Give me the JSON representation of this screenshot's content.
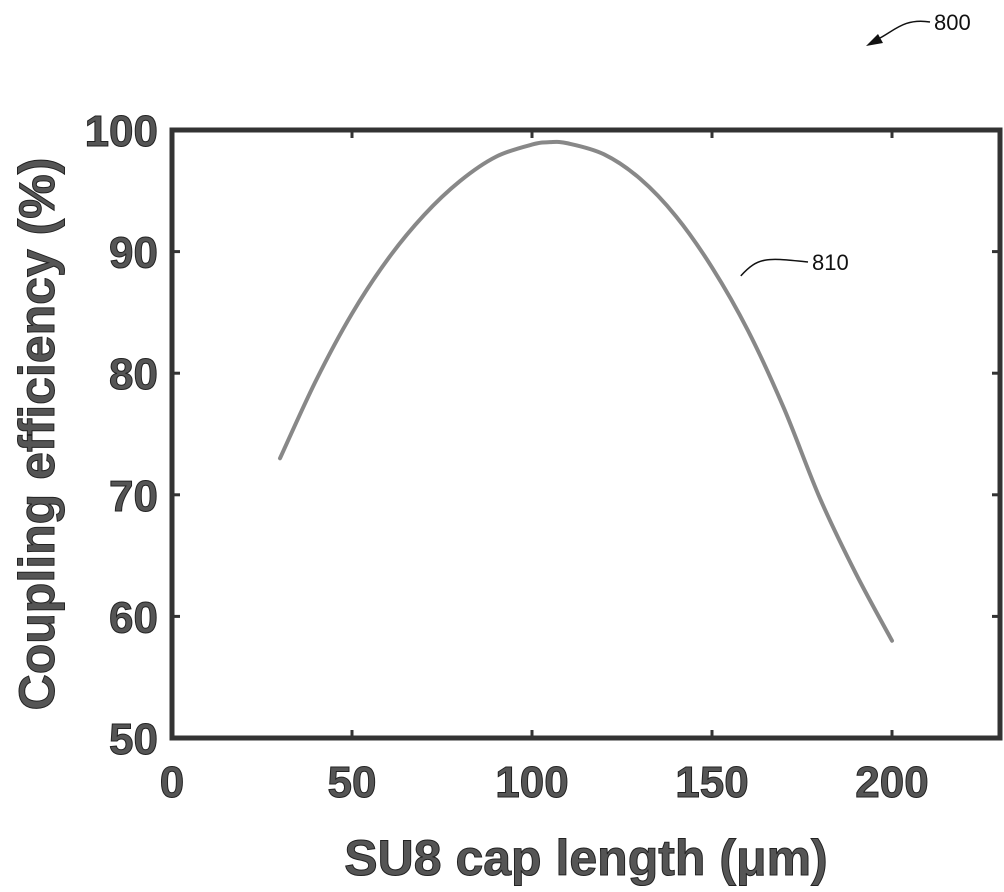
{
  "chart_data": {
    "type": "line",
    "title": "",
    "xlabel": "SU8 cap length (μm)",
    "ylabel": "Coupling efficiency (%)",
    "xlim": [
      0,
      230
    ],
    "ylim": [
      50,
      100
    ],
    "xticks": [
      0,
      50,
      100,
      150,
      200
    ],
    "yticks": [
      50,
      60,
      70,
      80,
      90,
      100
    ],
    "grid": false,
    "color": "#888888",
    "series": [
      {
        "x": [
          30,
          40,
          50,
          60,
          70,
          80,
          90,
          100,
          105,
          110,
          120,
          130,
          140,
          150,
          160,
          170,
          180,
          190,
          200
        ],
        "y": [
          73.0,
          79.4,
          84.9,
          89.4,
          93.0,
          95.8,
          97.8,
          98.8,
          99.0,
          98.9,
          98.0,
          96.0,
          92.9,
          88.7,
          83.5,
          77.1,
          69.7,
          63.5,
          58.0
        ]
      }
    ],
    "annotations": [
      {
        "text": "810",
        "target_x": 158,
        "target_y": 88
      }
    ]
  },
  "figure": {
    "ref_number": "800"
  }
}
